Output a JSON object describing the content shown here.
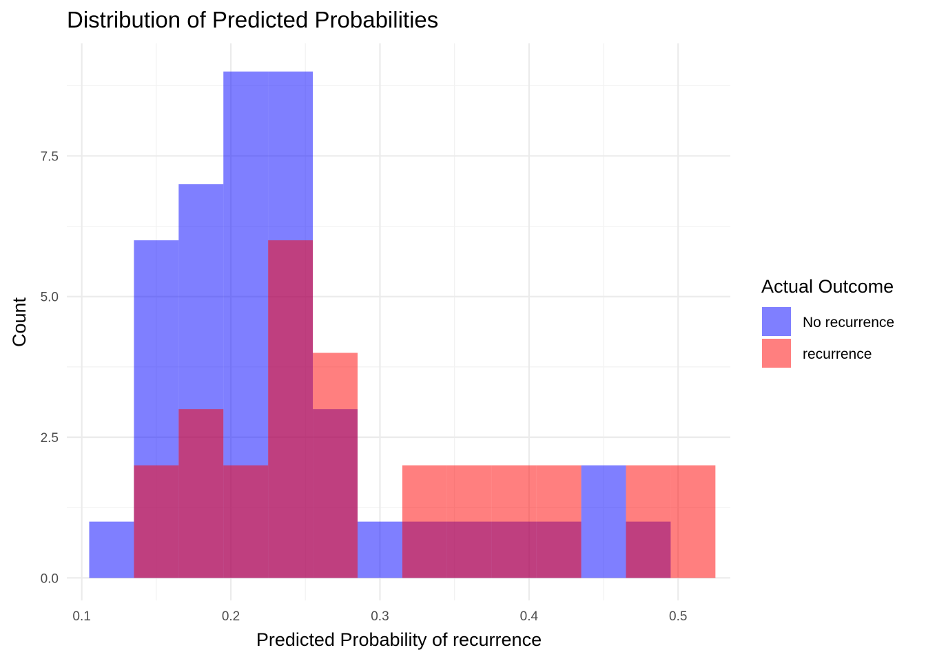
{
  "chart_data": {
    "type": "bar",
    "subtype": "overlapping histogram",
    "title": "Distribution of Predicted Probabilities",
    "xlabel": "Predicted Probability of recurrence",
    "ylabel": "Count",
    "xlim": [
      0.09,
      0.535
    ],
    "ylim": [
      -0.4,
      9.5
    ],
    "x_ticks": [
      0.1,
      0.2,
      0.3,
      0.4,
      0.5
    ],
    "x_tick_labels": [
      "0.1",
      "0.2",
      "0.3",
      "0.4",
      "0.5"
    ],
    "y_ticks": [
      0,
      2.5,
      5,
      7.5
    ],
    "y_tick_labels": [
      "0.0",
      "2.5",
      "5.0",
      "7.5"
    ],
    "grid": true,
    "legend_position": "right",
    "legend_title": "Actual Outcome",
    "bin_width": 0.03,
    "series": [
      {
        "name": "No recurrence",
        "color": "#0000ff",
        "opacity": 0.5,
        "bins": [
          {
            "x": 0.12,
            "count": 1
          },
          {
            "x": 0.15,
            "count": 6
          },
          {
            "x": 0.18,
            "count": 7
          },
          {
            "x": 0.21,
            "count": 9
          },
          {
            "x": 0.24,
            "count": 9
          },
          {
            "x": 0.27,
            "count": 3
          },
          {
            "x": 0.3,
            "count": 1
          },
          {
            "x": 0.33,
            "count": 1
          },
          {
            "x": 0.36,
            "count": 1
          },
          {
            "x": 0.39,
            "count": 1
          },
          {
            "x": 0.42,
            "count": 1
          },
          {
            "x": 0.45,
            "count": 2
          },
          {
            "x": 0.48,
            "count": 1
          }
        ]
      },
      {
        "name": "recurrence",
        "color": "#ff0000",
        "opacity": 0.5,
        "bins": [
          {
            "x": 0.15,
            "count": 2
          },
          {
            "x": 0.18,
            "count": 3
          },
          {
            "x": 0.21,
            "count": 2
          },
          {
            "x": 0.24,
            "count": 6
          },
          {
            "x": 0.27,
            "count": 4
          },
          {
            "x": 0.33,
            "count": 2
          },
          {
            "x": 0.36,
            "count": 2
          },
          {
            "x": 0.39,
            "count": 2
          },
          {
            "x": 0.42,
            "count": 2
          },
          {
            "x": 0.48,
            "count": 2
          },
          {
            "x": 0.51,
            "count": 2
          }
        ]
      }
    ]
  }
}
